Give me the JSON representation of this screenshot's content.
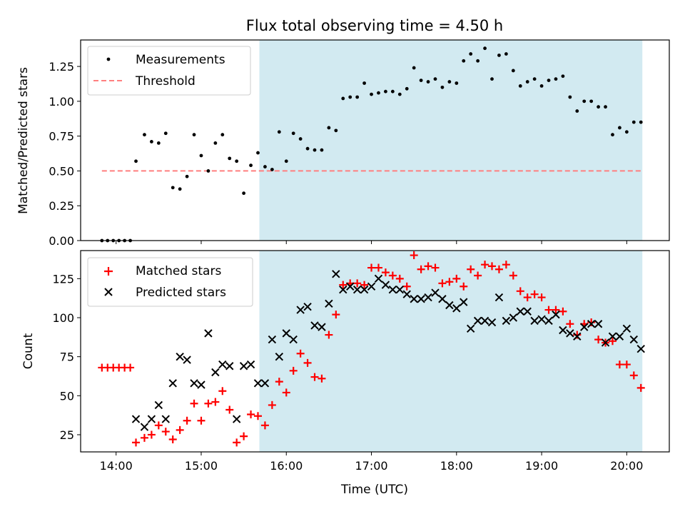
{
  "chart_data": [
    {
      "type": "scatter",
      "title": "Flux total observing time = 4.50 h",
      "ylabel": "Matched/Predicted stars",
      "xlim": [
        "13:35",
        "20:30"
      ],
      "ylim": [
        0,
        1.44
      ],
      "x_ticks": [
        "14:00",
        "15:00",
        "16:00",
        "17:00",
        "18:00",
        "19:00",
        "20:00"
      ],
      "y_ticks": [
        "0.00",
        "0.25",
        "0.50",
        "0.75",
        "1.00",
        "1.25"
      ],
      "highlight_span": [
        "15:41",
        "20:11"
      ],
      "highlight_color": "#add8e6",
      "legend_position": "upper-left",
      "legend": [
        "Measurements",
        "Threshold"
      ],
      "threshold": {
        "name": "Threshold",
        "value": 0.5,
        "x_start": "13:50",
        "x_end": "20:11",
        "color": "#ff7f7f"
      },
      "series": [
        {
          "name": "Measurements",
          "color": "#000000",
          "x": [
            "13:50",
            "13:54",
            "13:58",
            "14:02",
            "14:06",
            "14:10",
            "14:14",
            "14:20",
            "14:25",
            "14:30",
            "14:35",
            "14:40",
            "14:45",
            "14:50",
            "14:55",
            "15:00",
            "15:05",
            "15:10",
            "15:15",
            "15:20",
            "15:25",
            "15:30",
            "15:35",
            "15:40",
            "15:45",
            "15:50",
            "15:55",
            "16:00",
            "16:05",
            "16:10",
            "16:15",
            "16:20",
            "16:25",
            "16:30",
            "16:35",
            "16:40",
            "16:45",
            "16:50",
            "16:55",
            "17:00",
            "17:05",
            "17:10",
            "17:15",
            "17:20",
            "17:25",
            "17:30",
            "17:35",
            "17:40",
            "17:45",
            "17:50",
            "17:55",
            "18:00",
            "18:05",
            "18:10",
            "18:15",
            "18:20",
            "18:25",
            "18:30",
            "18:35",
            "18:40",
            "18:45",
            "18:50",
            "18:55",
            "19:00",
            "19:05",
            "19:10",
            "19:15",
            "19:20",
            "19:25",
            "19:30",
            "19:35",
            "19:40",
            "19:45",
            "19:50",
            "19:55",
            "20:00",
            "20:05",
            "20:10"
          ],
          "y": [
            0,
            0,
            0,
            0,
            0,
            0,
            0.57,
            0.76,
            0.71,
            0.7,
            0.77,
            0.38,
            0.37,
            0.46,
            0.76,
            0.61,
            0.5,
            0.7,
            0.76,
            0.59,
            0.57,
            0.34,
            0.54,
            0.63,
            0.53,
            0.51,
            0.78,
            0.57,
            0.77,
            0.73,
            0.66,
            0.65,
            0.65,
            0.81,
            0.79,
            1.02,
            1.03,
            1.03,
            1.13,
            1.05,
            1.06,
            1.07,
            1.07,
            1.05,
            1.09,
            1.24,
            1.15,
            1.14,
            1.16,
            1.1,
            1.14,
            1.13,
            1.29,
            1.34,
            1.29,
            1.38,
            1.16,
            1.33,
            1.34,
            1.22,
            1.11,
            1.14,
            1.16,
            1.11,
            1.15,
            1.16,
            1.18,
            1.03,
            0.93,
            1.0,
            1.0,
            0.96,
            0.96,
            0.76,
            0.81,
            0.78,
            0.85,
            0.85
          ]
        }
      ]
    },
    {
      "type": "scatter",
      "xlabel": "Time (UTC)",
      "ylabel": "Count",
      "xlim": [
        "13:35",
        "20:30"
      ],
      "ylim": [
        14,
        143
      ],
      "x_ticks": [
        "14:00",
        "15:00",
        "16:00",
        "17:00",
        "18:00",
        "19:00",
        "20:00"
      ],
      "y_ticks": [
        "25",
        "50",
        "75",
        "100",
        "125"
      ],
      "highlight_span": [
        "15:41",
        "20:11"
      ],
      "highlight_color": "#add8e6",
      "legend_position": "upper-left",
      "legend": [
        "Matched stars",
        "Predicted stars"
      ],
      "series": [
        {
          "name": "Matched stars",
          "marker": "+",
          "color": "#ff0000",
          "x": [
            "13:50",
            "13:54",
            "13:58",
            "14:02",
            "14:06",
            "14:10",
            "14:14",
            "14:20",
            "14:25",
            "14:30",
            "14:35",
            "14:40",
            "14:45",
            "14:50",
            "14:55",
            "15:00",
            "15:05",
            "15:10",
            "15:15",
            "15:20",
            "15:25",
            "15:30",
            "15:35",
            "15:40",
            "15:45",
            "15:50",
            "15:55",
            "16:00",
            "16:05",
            "16:10",
            "16:15",
            "16:20",
            "16:25",
            "16:30",
            "16:35",
            "16:40",
            "16:45",
            "16:50",
            "16:55",
            "17:00",
            "17:05",
            "17:10",
            "17:15",
            "17:20",
            "17:25",
            "17:30",
            "17:35",
            "17:40",
            "17:45",
            "17:50",
            "17:55",
            "18:00",
            "18:05",
            "18:10",
            "18:15",
            "18:20",
            "18:25",
            "18:30",
            "18:35",
            "18:40",
            "18:45",
            "18:50",
            "18:55",
            "19:00",
            "19:05",
            "19:10",
            "19:15",
            "19:20",
            "19:25",
            "19:30",
            "19:35",
            "19:40",
            "19:45",
            "19:50",
            "19:55",
            "20:00",
            "20:05",
            "20:10"
          ],
          "y": [
            68,
            68,
            68,
            68,
            68,
            68,
            20,
            23,
            25,
            31,
            27,
            22,
            28,
            34,
            45,
            34,
            45,
            46,
            53,
            41,
            20,
            24,
            38,
            37,
            31,
            44,
            59,
            52,
            66,
            77,
            71,
            62,
            61,
            89,
            102,
            121,
            122,
            122,
            121,
            132,
            132,
            129,
            127,
            125,
            120,
            140,
            131,
            133,
            132,
            122,
            123,
            125,
            120,
            131,
            127,
            134,
            133,
            131,
            134,
            127,
            117,
            113,
            115,
            113,
            105,
            105,
            104,
            96,
            89,
            96,
            97,
            86,
            84,
            85,
            70,
            70,
            63,
            55
          ]
        },
        {
          "name": "Predicted stars",
          "marker": "x",
          "color": "#000000",
          "x": [
            "14:14",
            "14:20",
            "14:25",
            "14:30",
            "14:35",
            "14:40",
            "14:45",
            "14:50",
            "14:55",
            "15:00",
            "15:05",
            "15:10",
            "15:15",
            "15:20",
            "15:25",
            "15:30",
            "15:35",
            "15:40",
            "15:45",
            "15:50",
            "15:55",
            "16:00",
            "16:05",
            "16:10",
            "16:15",
            "16:20",
            "16:25",
            "16:30",
            "16:35",
            "16:40",
            "16:45",
            "16:50",
            "16:55",
            "17:00",
            "17:05",
            "17:10",
            "17:15",
            "17:20",
            "17:25",
            "17:30",
            "17:35",
            "17:40",
            "17:45",
            "17:50",
            "17:55",
            "18:00",
            "18:05",
            "18:10",
            "18:15",
            "18:20",
            "18:25",
            "18:30",
            "18:35",
            "18:40",
            "18:45",
            "18:50",
            "18:55",
            "19:00",
            "19:05",
            "19:10",
            "19:15",
            "19:20",
            "19:25",
            "19:30",
            "19:35",
            "19:40",
            "19:45",
            "19:50",
            "19:55",
            "20:00",
            "20:05",
            "20:10"
          ],
          "y": [
            35,
            30,
            35,
            44,
            35,
            58,
            75,
            73,
            58,
            57,
            90,
            65,
            70,
            69,
            35,
            69,
            70,
            58,
            58,
            86,
            75,
            90,
            86,
            105,
            107,
            95,
            94,
            109,
            128,
            118,
            120,
            118,
            118,
            120,
            125,
            121,
            118,
            118,
            115,
            112,
            112,
            113,
            116,
            112,
            108,
            106,
            110,
            93,
            98,
            98,
            97,
            113,
            98,
            100,
            104,
            104,
            98,
            99,
            98,
            102,
            92,
            90,
            88,
            94,
            96,
            96,
            84,
            88,
            88,
            93,
            86,
            80
          ]
        }
      ]
    }
  ]
}
